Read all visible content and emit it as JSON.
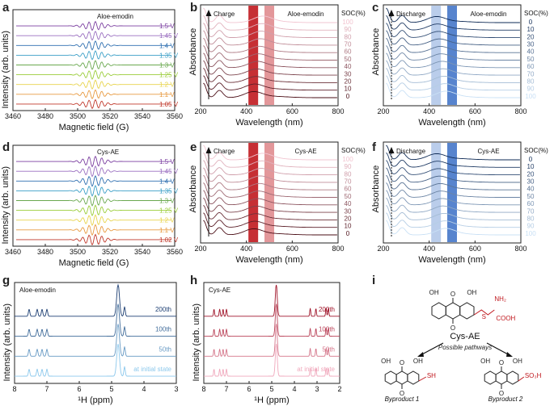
{
  "panel_letters": [
    "a",
    "b",
    "c",
    "d",
    "e",
    "f",
    "g",
    "h",
    "i"
  ],
  "epr_xlabel": "Magnetic field (G)",
  "epr_ylabel": "Intensity (arb. units)",
  "uv_xlabel": "Wavelength (nm)",
  "uv_ylabel": "Absorbance",
  "nmr_xlabel": "¹H (ppm)",
  "nmr_ylabel": "Intensity (arb. units)",
  "soc_header": "SOC(%)",
  "charge_label": "Charge",
  "discharge_label": "Discharge",
  "colors": {
    "purple": "#7b2f9e",
    "red_dark": "#6b1020",
    "red_band": "#c0181e",
    "blue_band": "#3a6fc6",
    "navy": "#1d3f73",
    "pink": "#e08aa3",
    "sky": "#5fa8d8"
  },
  "chart_data": [
    {
      "id": "a",
      "type": "line",
      "title": "Aloe-emodin",
      "xlabel": "Magnetic field (G)",
      "ylabel": "Intensity (arb. units)",
      "xlim": [
        3460,
        3560
      ],
      "xticks": [
        3460,
        3480,
        3500,
        3520,
        3540,
        3560
      ],
      "series_labels": [
        "1.5 V",
        "1.45 V",
        "1.4 V",
        "1.35 V",
        "1.3 V",
        "1.25 V",
        "1.2 V",
        "1.1 V",
        "1.05 V"
      ],
      "series_colors": [
        "#7b3fa0",
        "#9a6fc0",
        "#2f6fb0",
        "#3b9fc7",
        "#6aa84f",
        "#9bcd3a",
        "#e8d44d",
        "#e89a40",
        "#c0392b"
      ]
    },
    {
      "id": "b",
      "type": "line",
      "title": "Aloe-emodin",
      "direction": "Charge",
      "xlabel": "Wavelength (nm)",
      "ylabel": "Absorbance",
      "xlim": [
        200,
        800
      ],
      "xticks": [
        200,
        400,
        600,
        800
      ],
      "bands_nm": [
        430,
        500
      ],
      "series_labels": [
        "100",
        "90",
        "80",
        "70",
        "60",
        "50",
        "40",
        "30",
        "20",
        "10",
        "0"
      ]
    },
    {
      "id": "c",
      "type": "line",
      "title": "Aloe-emodin",
      "direction": "Discharge",
      "xlabel": "Wavelength (nm)",
      "ylabel": "Absorbance",
      "xlim": [
        200,
        800
      ],
      "xticks": [
        200,
        400,
        600,
        800
      ],
      "bands_nm": [
        430,
        500
      ],
      "series_labels": [
        "0",
        "10",
        "20",
        "30",
        "40",
        "50",
        "60",
        "70",
        "80",
        "90",
        "100"
      ]
    },
    {
      "id": "d",
      "type": "line",
      "title": "Cys-AE",
      "xlabel": "Magnetic field (G)",
      "ylabel": "Intensity (arb. units)",
      "xlim": [
        3460,
        3560
      ],
      "xticks": [
        3460,
        3480,
        3500,
        3520,
        3540,
        3560
      ],
      "series_labels": [
        "1.5 V",
        "1.45 V",
        "1.4 V",
        "1.35 V",
        "1.3 V",
        "1.25 V",
        "1.2 V",
        "1.1 V",
        "1.02 V"
      ],
      "series_colors": [
        "#7b3fa0",
        "#9a6fc0",
        "#2f6fb0",
        "#3b9fc7",
        "#6aa84f",
        "#9bcd3a",
        "#e8d44d",
        "#e89a40",
        "#c0392b"
      ]
    },
    {
      "id": "e",
      "type": "line",
      "title": "Cys-AE",
      "direction": "Charge",
      "xlabel": "Wavelength (nm)",
      "ylabel": "Absorbance",
      "xlim": [
        200,
        800
      ],
      "xticks": [
        200,
        400,
        600,
        800
      ],
      "bands_nm": [
        430,
        500
      ],
      "series_labels": [
        "100",
        "90",
        "80",
        "70",
        "60",
        "50",
        "40",
        "30",
        "20",
        "10",
        "0"
      ]
    },
    {
      "id": "f",
      "type": "line",
      "title": "Cys-AE",
      "direction": "Discharge",
      "xlabel": "Wavelength (nm)",
      "ylabel": "Absorbance",
      "xlim": [
        200,
        800
      ],
      "xticks": [
        200,
        400,
        600,
        800
      ],
      "bands_nm": [
        430,
        500
      ],
      "series_labels": [
        "0",
        "10",
        "20",
        "30",
        "40",
        "50",
        "60",
        "70",
        "80",
        "90",
        "100"
      ]
    },
    {
      "id": "g",
      "type": "line",
      "title": "Aloe-emodin",
      "xlabel": "¹H (ppm)",
      "ylabel": "Intensity (arb. units)",
      "xlim": [
        8,
        3
      ],
      "xticks": [
        8,
        7,
        6,
        5,
        4,
        3
      ],
      "series_labels": [
        "200th",
        "100th",
        "50th",
        "at initial state"
      ]
    },
    {
      "id": "h",
      "type": "line",
      "title": "Cys-AE",
      "xlabel": "¹H (ppm)",
      "ylabel": "Intensity (arb. units)",
      "xlim": [
        8,
        2
      ],
      "xticks": [
        8,
        7,
        6,
        5,
        4,
        3,
        2
      ],
      "series_labels": [
        "200th",
        "100th",
        "50th",
        "at initial state"
      ]
    }
  ],
  "scheme": {
    "title": "Cys-AE",
    "pathways": "Possible pathways",
    "product1": "Byproduct 1",
    "product2": "Byproduct 2",
    "oh": "OH",
    "o": "O",
    "s": "S",
    "nh2": "NH₂",
    "cooh": "COOH",
    "sh": "SH",
    "so3h": "SO₃H"
  }
}
